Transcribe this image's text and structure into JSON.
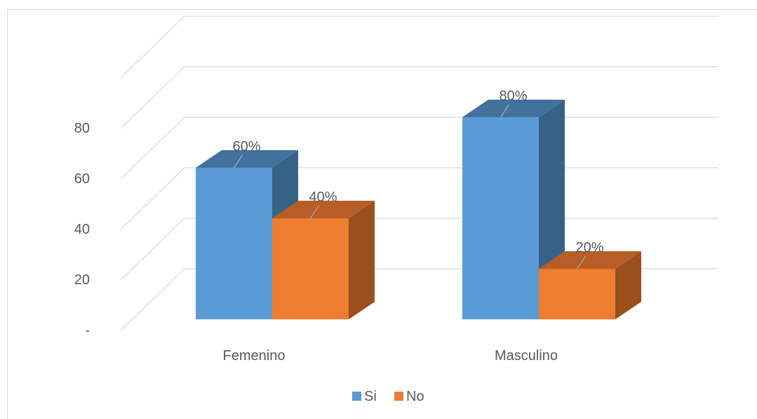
{
  "chart_data": {
    "type": "bar",
    "categories": [
      "Femenino",
      "Masculino"
    ],
    "series": [
      {
        "name": "Si",
        "values": [
          60,
          80
        ],
        "labels": [
          "60%",
          "80%"
        ]
      },
      {
        "name": "No",
        "values": [
          40,
          20
        ],
        "labels": [
          "40%",
          "20%"
        ]
      }
    ],
    "ylim": [
      0,
      100
    ],
    "yticks": [
      {
        "value": 0,
        "label": "-"
      },
      {
        "value": 20,
        "label": "20"
      },
      {
        "value": 40,
        "label": "40"
      },
      {
        "value": 60,
        "label": "60"
      },
      {
        "value": 80,
        "label": "80"
      }
    ],
    "grid": true,
    "legend": "bottom",
    "style_3d": true
  },
  "colors": {
    "Si": {
      "front": "#5b9bd5",
      "top": "#41719c",
      "side": "#376287"
    },
    "No": {
      "front": "#ed7d31",
      "top": "#b65e25",
      "side": "#9a4f1c"
    },
    "grid": "#d9d9d9",
    "text": "#595959",
    "leader": "#a6a6a6"
  }
}
